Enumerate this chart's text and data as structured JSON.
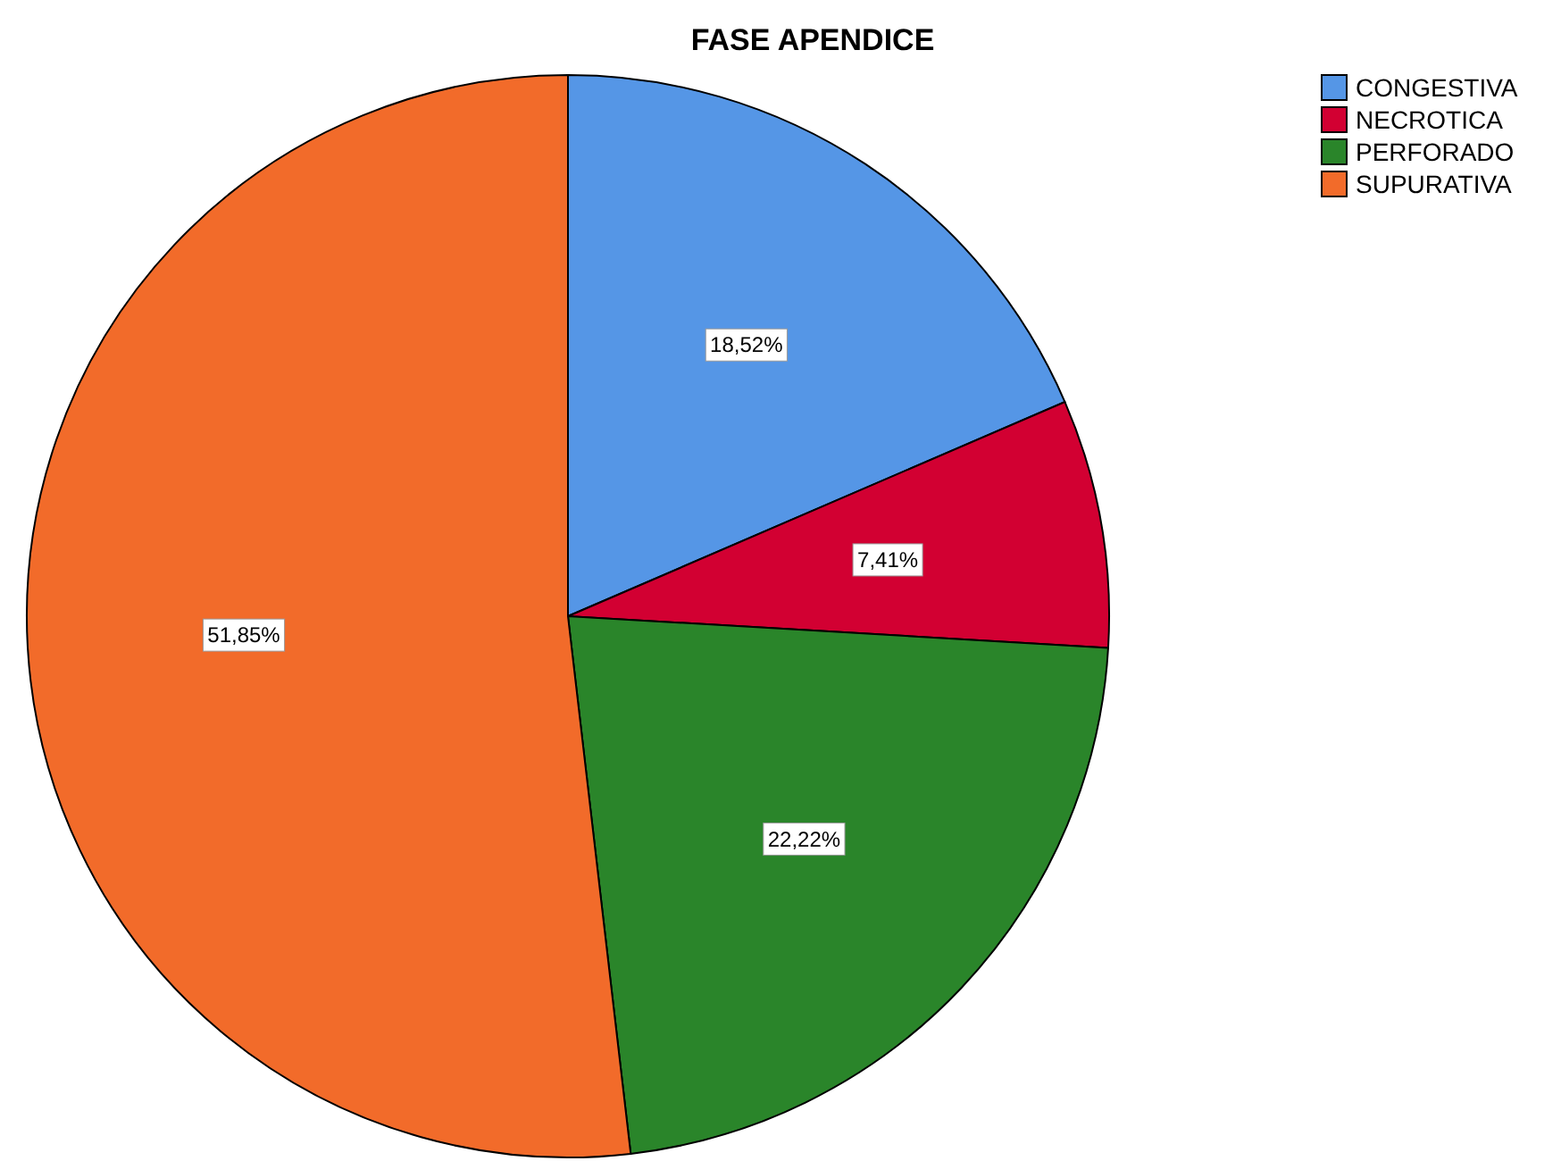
{
  "chart_data": {
    "type": "pie",
    "title": "FASE APENDICE",
    "categories": [
      "CONGESTIVA",
      "NECROTICA",
      "PERFORADO",
      "SUPURATIVA"
    ],
    "values": [
      18.52,
      7.41,
      22.22,
      51.85
    ],
    "colors": [
      "#5596e6",
      "#d20032",
      "#2a852a",
      "#f26b2a"
    ],
    "value_labels": [
      "18,52%",
      "7,41%",
      "22,22%",
      "51,85%"
    ],
    "legend": "top right"
  }
}
